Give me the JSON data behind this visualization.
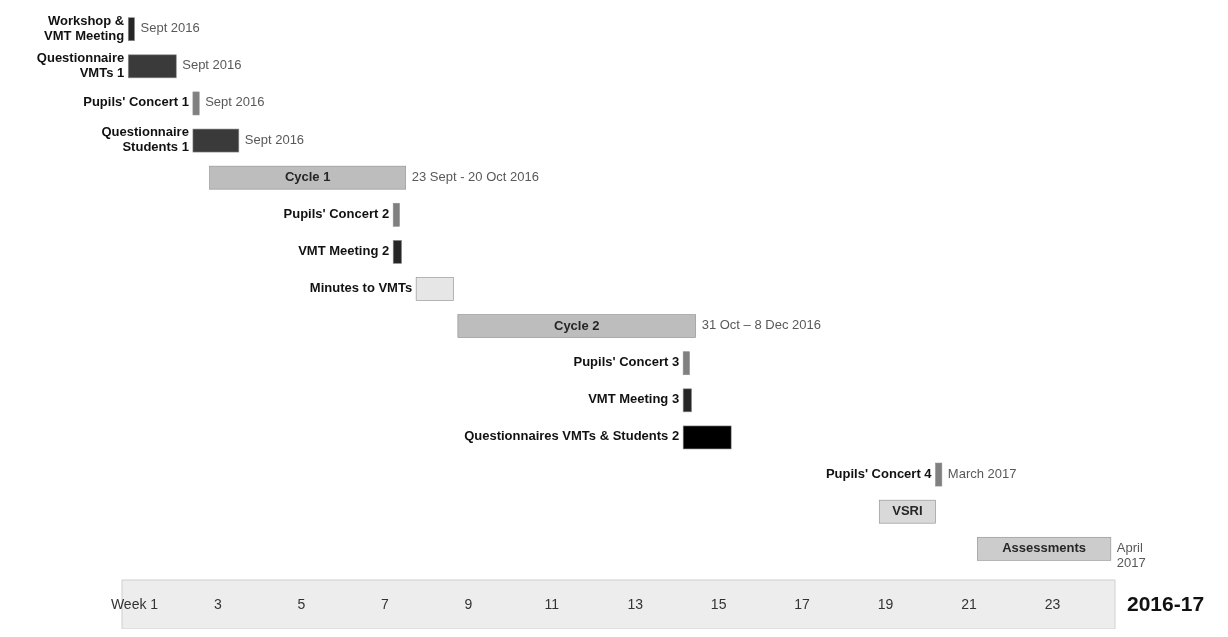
{
  "chart_data": {
    "type": "bar",
    "orientation": "horizontal",
    "categories": [
      "Workshop & VMT Meeting",
      "Questionnaire VMTs 1",
      "Pupils' Concert 1",
      "Questionnaire Students 1",
      "Cycle 1",
      "Pupils' Concert 2",
      "VMT Meeting 2",
      "Minutes to VMTs",
      "Cycle 2",
      "Pupils' Concert 3",
      "VMT Meeting 3",
      "Questionnaires VMTs & Students 2",
      "Pupils' Concert 4",
      "VSRI",
      "Assessments"
    ],
    "base": [
      0.85,
      0.85,
      2.4,
      2.4,
      2.8,
      7.2,
      7.2,
      7.75,
      8.75,
      14.15,
      14.15,
      14.15,
      20.2,
      18.85,
      21.2
    ],
    "values": [
      0.15,
      1.15,
      0.15,
      1.1,
      4.7,
      0.15,
      0.2,
      0.9,
      5.7,
      0.15,
      0.2,
      1.15,
      0.15,
      1.35,
      3.2
    ],
    "colors": [
      "#262626",
      "#3a3a3a",
      "#808080",
      "#3a3a3a",
      "#bdbdbd",
      "#808080",
      "#262626",
      "#e6e6e6",
      "#bdbdbd",
      "#808080",
      "#262626",
      "#000000",
      "#808080",
      "#d9d9d9",
      "#cccccc"
    ],
    "xlim": [
      0.7,
      24.5
    ],
    "xticks": [
      {
        "value": 1,
        "label": "Week 1"
      },
      3,
      5,
      7,
      9,
      11,
      13,
      15,
      17,
      19,
      21,
      23
    ],
    "xlabel": "2016-17",
    "annotations": [
      {
        "text": "Sept 2016",
        "x": 1.0,
        "y": "Workshop & VMT Meeting"
      },
      {
        "text": "Sept 2016",
        "x": 2.0,
        "y": "Questionnaire VMTs 1"
      },
      {
        "text": "Sept 2016",
        "x": 2.55,
        "y": "Pupils' Concert 1"
      },
      {
        "text": "Sept 2016",
        "x": 3.5,
        "y": "Questionnaire Students 1"
      },
      {
        "text": "23 Sept  - 20 Oct 2016",
        "x": 7.5,
        "y": "Cycle 1"
      },
      {
        "text": "31 Oct  – 8 Dec 2016",
        "x": 14.45,
        "y": "Cycle 2"
      },
      {
        "text": "March 2017",
        "x": 20.35,
        "y": "Pupils' Concert 4"
      },
      {
        "text": "April 2017",
        "x": 24.4,
        "y": "Assessments"
      }
    ]
  }
}
